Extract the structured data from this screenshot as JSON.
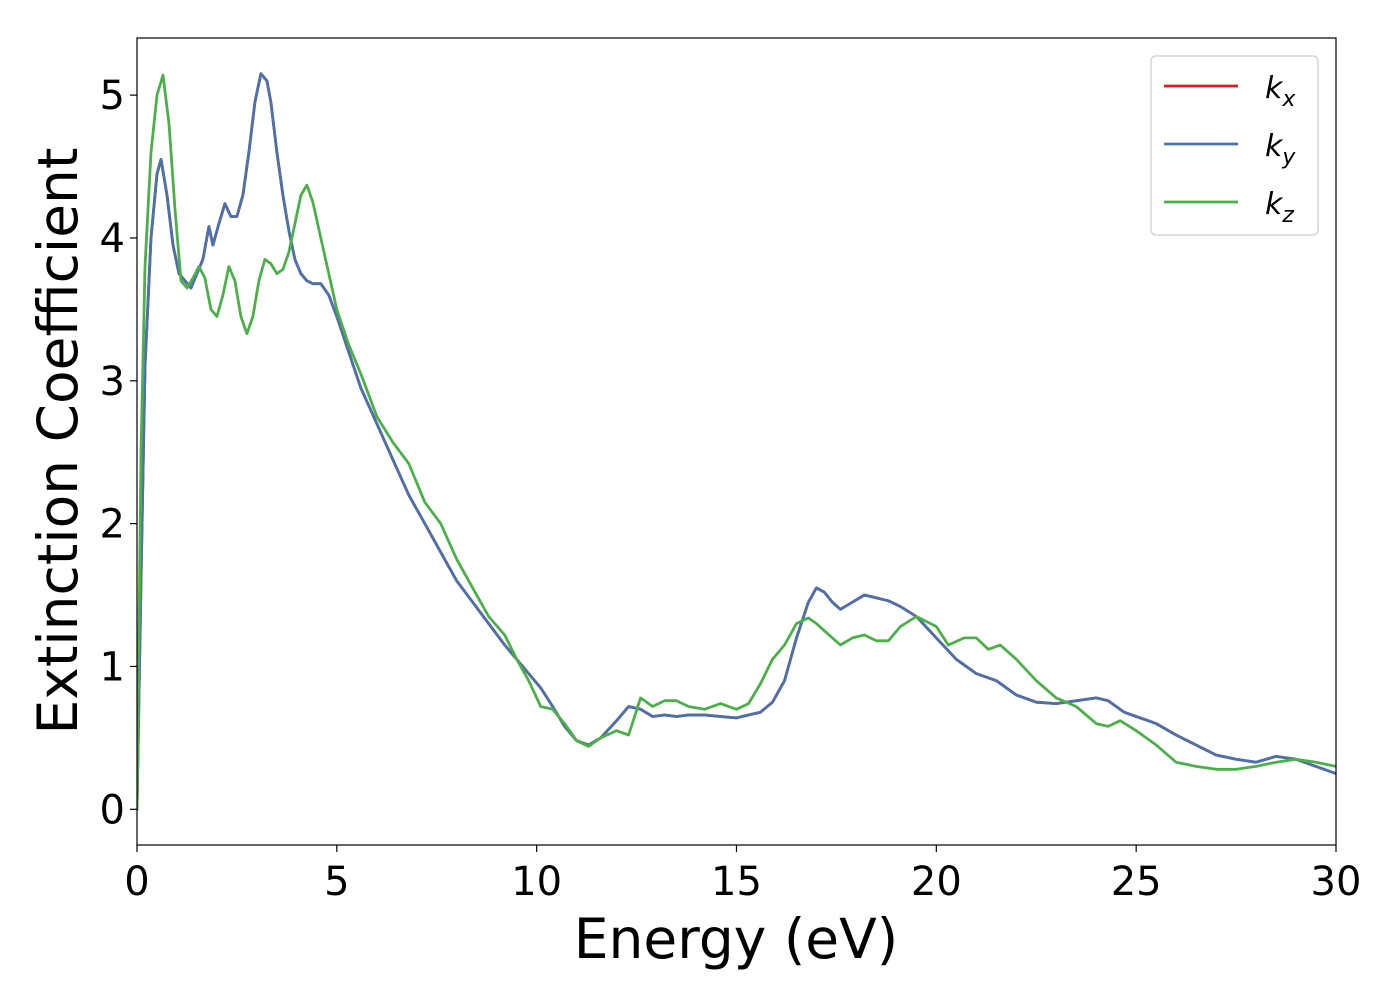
{
  "chart_data": {
    "type": "line",
    "xlabel": "Energy (eV)",
    "ylabel": "Extinction Coefficient",
    "xlim": [
      0,
      30
    ],
    "ylim": [
      -0.25,
      5.4
    ],
    "xticks": [
      0,
      5,
      10,
      15,
      20,
      25,
      30
    ],
    "yticks": [
      0,
      1,
      2,
      3,
      4,
      5
    ],
    "grid": false,
    "legend_position": "top-right",
    "series": [
      {
        "name": "k_x",
        "color": "#e41a1c",
        "x": [
          0,
          0.1,
          0.2,
          0.35,
          0.5,
          0.6,
          0.75,
          0.9,
          1.05,
          1.2,
          1.35,
          1.5,
          1.65,
          1.8,
          1.9,
          2.05,
          2.2,
          2.35,
          2.5,
          2.65,
          2.8,
          2.95,
          3.1,
          3.25,
          3.35,
          3.5,
          3.65,
          3.8,
          3.95,
          4.1,
          4.25,
          4.4,
          4.6,
          4.8,
          5.0,
          5.3,
          5.6,
          6.0,
          6.4,
          6.8,
          7.2,
          7.6,
          8.0,
          8.4,
          8.8,
          9.2,
          9.5,
          9.8,
          10.1,
          10.4,
          10.7,
          11.0,
          11.3,
          11.6,
          12.0,
          12.3,
          12.6,
          12.9,
          13.2,
          13.5,
          13.8,
          14.2,
          14.6,
          15.0,
          15.3,
          15.6,
          15.9,
          16.2,
          16.5,
          16.8,
          17.0,
          17.2,
          17.4,
          17.6,
          17.9,
          18.2,
          18.5,
          18.8,
          19.1,
          19.5,
          20.0,
          20.5,
          21.0,
          21.5,
          22.0,
          22.5,
          23.0,
          23.5,
          24.0,
          24.3,
          24.7,
          25.0,
          25.5,
          26.0,
          26.5,
          27.0,
          27.5,
          28.0,
          28.5,
          29.0,
          29.5,
          30.0
        ],
        "y": [
          0.0,
          1.6,
          3.1,
          4.0,
          4.45,
          4.55,
          4.3,
          3.95,
          3.75,
          3.7,
          3.65,
          3.75,
          3.85,
          4.08,
          3.95,
          4.1,
          4.24,
          4.15,
          4.15,
          4.3,
          4.6,
          4.95,
          5.15,
          5.1,
          4.95,
          4.6,
          4.3,
          4.05,
          3.85,
          3.75,
          3.7,
          3.68,
          3.68,
          3.6,
          3.45,
          3.2,
          2.95,
          2.7,
          2.45,
          2.2,
          2.0,
          1.8,
          1.6,
          1.45,
          1.3,
          1.15,
          1.05,
          0.95,
          0.85,
          0.72,
          0.58,
          0.48,
          0.45,
          0.5,
          0.62,
          0.72,
          0.7,
          0.65,
          0.66,
          0.65,
          0.66,
          0.66,
          0.65,
          0.64,
          0.66,
          0.68,
          0.75,
          0.9,
          1.2,
          1.45,
          1.55,
          1.52,
          1.45,
          1.4,
          1.45,
          1.5,
          1.48,
          1.46,
          1.42,
          1.35,
          1.2,
          1.05,
          0.95,
          0.9,
          0.8,
          0.75,
          0.74,
          0.76,
          0.78,
          0.76,
          0.68,
          0.65,
          0.6,
          0.52,
          0.45,
          0.38,
          0.35,
          0.33,
          0.37,
          0.35,
          0.3,
          0.25
        ]
      },
      {
        "name": "k_y",
        "color": "#4a72ab",
        "x": [
          0,
          0.1,
          0.2,
          0.35,
          0.5,
          0.6,
          0.75,
          0.9,
          1.05,
          1.2,
          1.35,
          1.5,
          1.65,
          1.8,
          1.9,
          2.05,
          2.2,
          2.35,
          2.5,
          2.65,
          2.8,
          2.95,
          3.1,
          3.25,
          3.35,
          3.5,
          3.65,
          3.8,
          3.95,
          4.1,
          4.25,
          4.4,
          4.6,
          4.8,
          5.0,
          5.3,
          5.6,
          6.0,
          6.4,
          6.8,
          7.2,
          7.6,
          8.0,
          8.4,
          8.8,
          9.2,
          9.5,
          9.8,
          10.1,
          10.4,
          10.7,
          11.0,
          11.3,
          11.6,
          12.0,
          12.3,
          12.6,
          12.9,
          13.2,
          13.5,
          13.8,
          14.2,
          14.6,
          15.0,
          15.3,
          15.6,
          15.9,
          16.2,
          16.5,
          16.8,
          17.0,
          17.2,
          17.4,
          17.6,
          17.9,
          18.2,
          18.5,
          18.8,
          19.1,
          19.5,
          20.0,
          20.5,
          21.0,
          21.5,
          22.0,
          22.5,
          23.0,
          23.5,
          24.0,
          24.3,
          24.7,
          25.0,
          25.5,
          26.0,
          26.5,
          27.0,
          27.5,
          28.0,
          28.5,
          29.0,
          29.5,
          30.0
        ],
        "y": [
          0.0,
          1.6,
          3.1,
          4.0,
          4.45,
          4.55,
          4.3,
          3.95,
          3.75,
          3.7,
          3.65,
          3.75,
          3.85,
          4.08,
          3.95,
          4.1,
          4.24,
          4.15,
          4.15,
          4.3,
          4.6,
          4.95,
          5.15,
          5.1,
          4.95,
          4.6,
          4.3,
          4.05,
          3.85,
          3.75,
          3.7,
          3.68,
          3.68,
          3.6,
          3.45,
          3.2,
          2.95,
          2.7,
          2.45,
          2.2,
          2.0,
          1.8,
          1.6,
          1.45,
          1.3,
          1.15,
          1.05,
          0.95,
          0.85,
          0.72,
          0.58,
          0.48,
          0.45,
          0.5,
          0.62,
          0.72,
          0.7,
          0.65,
          0.66,
          0.65,
          0.66,
          0.66,
          0.65,
          0.64,
          0.66,
          0.68,
          0.75,
          0.9,
          1.2,
          1.45,
          1.55,
          1.52,
          1.45,
          1.4,
          1.45,
          1.5,
          1.48,
          1.46,
          1.42,
          1.35,
          1.2,
          1.05,
          0.95,
          0.9,
          0.8,
          0.75,
          0.74,
          0.76,
          0.78,
          0.76,
          0.68,
          0.65,
          0.6,
          0.52,
          0.45,
          0.38,
          0.35,
          0.33,
          0.37,
          0.35,
          0.3,
          0.25
        ]
      },
      {
        "name": "k_z",
        "color": "#4daf4a",
        "x": [
          0,
          0.1,
          0.2,
          0.35,
          0.5,
          0.65,
          0.8,
          0.95,
          1.1,
          1.25,
          1.4,
          1.55,
          1.7,
          1.85,
          2.0,
          2.15,
          2.3,
          2.45,
          2.6,
          2.75,
          2.9,
          3.05,
          3.2,
          3.35,
          3.5,
          3.65,
          3.8,
          3.95,
          4.1,
          4.25,
          4.4,
          4.6,
          4.8,
          5.0,
          5.3,
          5.6,
          6.0,
          6.4,
          6.8,
          7.2,
          7.6,
          8.0,
          8.4,
          8.8,
          9.2,
          9.5,
          9.8,
          10.1,
          10.4,
          10.7,
          11.0,
          11.3,
          11.6,
          12.0,
          12.3,
          12.6,
          12.9,
          13.2,
          13.5,
          13.8,
          14.2,
          14.6,
          15.0,
          15.3,
          15.6,
          15.9,
          16.2,
          16.5,
          16.8,
          17.0,
          17.2,
          17.4,
          17.6,
          17.9,
          18.2,
          18.5,
          18.8,
          19.1,
          19.5,
          20.0,
          20.3,
          20.7,
          21.0,
          21.3,
          21.6,
          22.0,
          22.5,
          23.0,
          23.5,
          24.0,
          24.3,
          24.6,
          25.0,
          25.5,
          26.0,
          26.5,
          27.0,
          27.5,
          28.0,
          28.5,
          29.0,
          29.5,
          30.0
        ],
        "y": [
          0.0,
          2.5,
          3.8,
          4.6,
          5.0,
          5.14,
          4.8,
          4.2,
          3.7,
          3.65,
          3.72,
          3.8,
          3.72,
          3.5,
          3.45,
          3.6,
          3.8,
          3.7,
          3.45,
          3.33,
          3.45,
          3.7,
          3.85,
          3.82,
          3.75,
          3.78,
          3.9,
          4.1,
          4.3,
          4.37,
          4.25,
          4.0,
          3.75,
          3.5,
          3.25,
          3.05,
          2.75,
          2.57,
          2.42,
          2.15,
          2.0,
          1.75,
          1.55,
          1.35,
          1.22,
          1.05,
          0.9,
          0.72,
          0.7,
          0.6,
          0.48,
          0.44,
          0.5,
          0.55,
          0.52,
          0.78,
          0.72,
          0.76,
          0.76,
          0.72,
          0.7,
          0.74,
          0.7,
          0.74,
          0.88,
          1.05,
          1.15,
          1.3,
          1.34,
          1.3,
          1.25,
          1.2,
          1.15,
          1.2,
          1.22,
          1.18,
          1.18,
          1.28,
          1.35,
          1.28,
          1.15,
          1.2,
          1.2,
          1.12,
          1.15,
          1.05,
          0.9,
          0.78,
          0.72,
          0.6,
          0.58,
          0.62,
          0.55,
          0.45,
          0.33,
          0.3,
          0.28,
          0.28,
          0.3,
          0.33,
          0.35,
          0.33,
          0.3
        ]
      }
    ]
  },
  "legend": {
    "entries": [
      {
        "base": "k",
        "sub": "x",
        "color": "#e41a1c"
      },
      {
        "base": "k",
        "sub": "y",
        "color": "#4a72ab"
      },
      {
        "base": "k",
        "sub": "z",
        "color": "#4daf4a"
      }
    ]
  }
}
